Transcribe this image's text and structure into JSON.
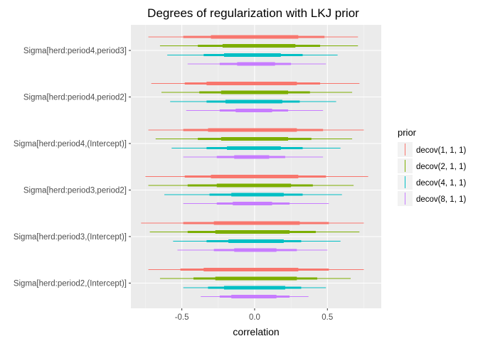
{
  "chart_data": {
    "type": "interval",
    "title": "Degrees of regularization with LKJ prior",
    "xlabel": "correlation",
    "ylabel": "",
    "xlim": [
      -0.85,
      0.87
    ],
    "xticks": [
      "-0.5",
      "0.0",
      "0.5"
    ],
    "xtick_values": [
      -0.5,
      0.0,
      0.5
    ],
    "grid": true,
    "legend_position": "right",
    "legend_title": "prior",
    "categories": [
      "Sigma[herd:period2,(Intercept)]",
      "Sigma[herd:period3,(Intercept)]",
      "Sigma[herd:period3,period2]",
      "Sigma[herd:period4,(Intercept)]",
      "Sigma[herd:period4,period2]",
      "Sigma[herd:period4,period3]"
    ],
    "series": [
      {
        "name": "decov(1, 1, 1)",
        "color": "#F8766D",
        "intervals": [
          {
            "outer": [
              -0.73,
              0.75
            ],
            "mid": [
              -0.51,
              0.51
            ],
            "inner": [
              -0.35,
              0.3
            ]
          },
          {
            "outer": [
              -0.78,
              0.75
            ],
            "mid": [
              -0.49,
              0.51
            ],
            "inner": [
              -0.28,
              0.31
            ]
          },
          {
            "outer": [
              -0.75,
              0.78
            ],
            "mid": [
              -0.48,
              0.49
            ],
            "inner": [
              -0.3,
              0.3
            ]
          },
          {
            "outer": [
              -0.73,
              0.75
            ],
            "mid": [
              -0.49,
              0.47
            ],
            "inner": [
              -0.32,
              0.29
            ]
          },
          {
            "outer": [
              -0.71,
              0.72
            ],
            "mid": [
              -0.48,
              0.45
            ],
            "inner": [
              -0.33,
              0.29
            ]
          },
          {
            "outer": [
              -0.73,
              0.71
            ],
            "mid": [
              -0.49,
              0.48
            ],
            "inner": [
              -0.3,
              0.3
            ]
          }
        ]
      },
      {
        "name": "decov(2, 1, 1)",
        "color": "#7CAE00",
        "intervals": [
          {
            "outer": [
              -0.65,
              0.66
            ],
            "mid": [
              -0.42,
              0.43
            ],
            "inner": [
              -0.27,
              0.29
            ]
          },
          {
            "outer": [
              -0.72,
              0.72
            ],
            "mid": [
              -0.46,
              0.42
            ],
            "inner": [
              -0.27,
              0.24
            ]
          },
          {
            "outer": [
              -0.73,
              0.68
            ],
            "mid": [
              -0.46,
              0.4
            ],
            "inner": [
              -0.26,
              0.25
            ]
          },
          {
            "outer": [
              -0.68,
              0.67
            ],
            "mid": [
              -0.39,
              0.39
            ],
            "inner": [
              -0.23,
              0.23
            ]
          },
          {
            "outer": [
              -0.64,
              0.67
            ],
            "mid": [
              -0.38,
              0.38
            ],
            "inner": [
              -0.23,
              0.23
            ]
          },
          {
            "outer": [
              -0.65,
              0.71
            ],
            "mid": [
              -0.39,
              0.45
            ],
            "inner": [
              -0.22,
              0.28
            ]
          }
        ]
      },
      {
        "name": "decov(4, 1, 1)",
        "color": "#00BFC4",
        "intervals": [
          {
            "outer": [
              -0.49,
              0.49
            ],
            "mid": [
              -0.32,
              0.32
            ],
            "inner": [
              -0.21,
              0.21
            ]
          },
          {
            "outer": [
              -0.56,
              0.59
            ],
            "mid": [
              -0.33,
              0.32
            ],
            "inner": [
              -0.18,
              0.2
            ]
          },
          {
            "outer": [
              -0.62,
              0.6
            ],
            "mid": [
              -0.31,
              0.33
            ],
            "inner": [
              -0.16,
              0.2
            ]
          },
          {
            "outer": [
              -0.57,
              0.59
            ],
            "mid": [
              -0.33,
              0.33
            ],
            "inner": [
              -0.19,
              0.18
            ]
          },
          {
            "outer": [
              -0.58,
              0.56
            ],
            "mid": [
              -0.33,
              0.31
            ],
            "inner": [
              -0.2,
              0.19
            ]
          },
          {
            "outer": [
              -0.6,
              0.57
            ],
            "mid": [
              -0.35,
              0.33
            ],
            "inner": [
              -0.21,
              0.18
            ]
          }
        ]
      },
      {
        "name": "decov(8, 1, 1)",
        "color": "#C77CFF",
        "intervals": [
          {
            "outer": [
              -0.37,
              0.37
            ],
            "mid": [
              -0.24,
              0.24
            ],
            "inner": [
              -0.16,
              0.15
            ]
          },
          {
            "outer": [
              -0.53,
              0.5
            ],
            "mid": [
              -0.28,
              0.29
            ],
            "inner": [
              -0.14,
              0.15
            ]
          },
          {
            "outer": [
              -0.49,
              0.51
            ],
            "mid": [
              -0.26,
              0.24
            ],
            "inner": [
              -0.15,
              0.12
            ]
          },
          {
            "outer": [
              -0.49,
              0.47
            ],
            "mid": [
              -0.26,
              0.21
            ],
            "inner": [
              -0.14,
              0.1
            ]
          },
          {
            "outer": [
              -0.47,
              0.47
            ],
            "mid": [
              -0.24,
              0.23
            ],
            "inner": [
              -0.13,
              0.12
            ]
          },
          {
            "outer": [
              -0.46,
              0.49
            ],
            "mid": [
              -0.24,
              0.25
            ],
            "inner": [
              -0.12,
              0.14
            ]
          }
        ]
      }
    ]
  }
}
